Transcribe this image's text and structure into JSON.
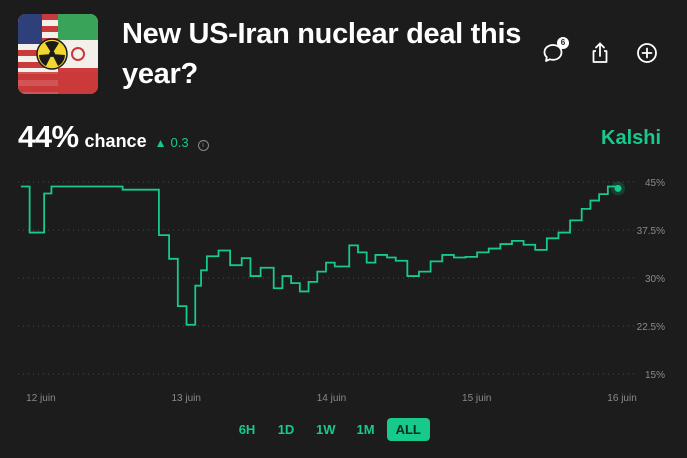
{
  "market": {
    "title": "New US-Iran nuclear deal this year?",
    "thumbnail_icon": "us-iran-flag-nuclear-icon",
    "comment_count": "6"
  },
  "stats": {
    "percent": "44%",
    "chance_label": "chance",
    "delta": "0.3",
    "source": "Kalshi"
  },
  "colors": {
    "accent": "#17c98a",
    "background": "#1c1c1c"
  },
  "ranges": [
    "6H",
    "1D",
    "1W",
    "1M",
    "ALL"
  ],
  "active_range": "ALL",
  "chart_data": {
    "type": "line",
    "ylim": [
      15,
      45
    ],
    "yticks": [
      "45%",
      "37.5%",
      "30%",
      "22.5%",
      "15%"
    ],
    "ytick_values": [
      45,
      37.5,
      30,
      22.5,
      15
    ],
    "xticks": [
      "12 juin",
      "13 juin",
      "14 juin",
      "15 juin",
      "16 juin"
    ],
    "xtick_values": [
      12,
      13,
      14,
      15,
      16
    ],
    "grid": true,
    "series": [
      {
        "x": [
          12.0,
          12.06,
          12.16,
          12.21,
          12.7,
          12.95,
          13.02,
          13.08,
          13.14,
          13.2,
          13.24,
          13.28,
          13.36,
          13.44,
          13.52,
          13.58,
          13.65,
          13.74,
          13.8,
          13.86,
          13.92,
          13.98,
          14.04,
          14.1,
          14.16,
          14.26,
          14.32,
          14.38,
          14.44,
          14.52,
          14.58,
          14.66,
          14.74,
          14.82,
          14.9,
          14.98,
          15.06,
          15.14,
          15.22,
          15.3,
          15.38,
          15.46,
          15.54,
          15.62,
          15.7,
          15.78,
          15.86,
          15.92,
          15.98,
          16.04,
          16.08,
          16.11
        ],
        "y": [
          44.3,
          37.1,
          43.2,
          44.3,
          43.8,
          36.7,
          33.0,
          25.6,
          22.7,
          28.8,
          31.2,
          33.4,
          34.3,
          32.0,
          33.1,
          30.3,
          31.6,
          28.4,
          30.3,
          29.2,
          27.9,
          29.4,
          31.0,
          32.4,
          31.8,
          35.1,
          34.0,
          32.4,
          33.6,
          33.2,
          32.7,
          30.3,
          31.0,
          32.6,
          33.6,
          33.2,
          33.3,
          34.0,
          34.6,
          35.3,
          35.8,
          35.2,
          34.4,
          36.2,
          37.1,
          39.0,
          40.8,
          42.1,
          43.1,
          44.3,
          44.3,
          44.0
        ],
        "color": "#17c98a"
      }
    ]
  }
}
